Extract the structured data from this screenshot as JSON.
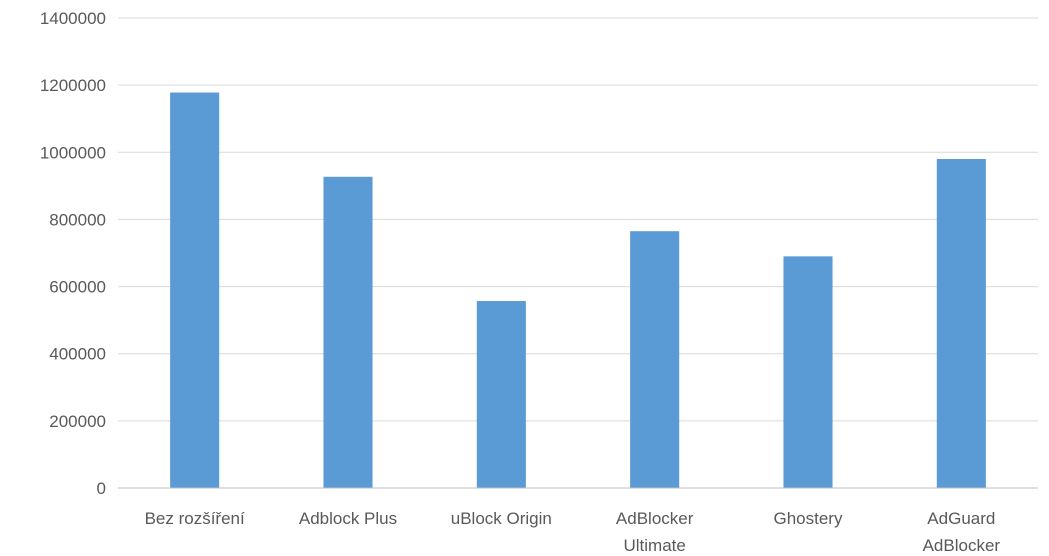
{
  "chart_data": {
    "type": "bar",
    "title": "",
    "xlabel": "",
    "ylabel": "",
    "categories": [
      [
        "Bez rozšíření"
      ],
      [
        "Adblock Plus"
      ],
      [
        "uBlock Origin"
      ],
      [
        "AdBlocker",
        "Ultimate"
      ],
      [
        "Ghostery"
      ],
      [
        "AdGuard",
        "AdBlocker"
      ]
    ],
    "values": [
      1178000,
      927000,
      557000,
      765000,
      690000,
      980000
    ],
    "ylim": [
      0,
      1400000
    ],
    "yticks": [
      "0",
      "200000",
      "400000",
      "600000",
      "800000",
      "1000000",
      "1200000",
      "1400000"
    ],
    "grid": true,
    "legend": "none",
    "bar_color": "#5b9bd5"
  }
}
